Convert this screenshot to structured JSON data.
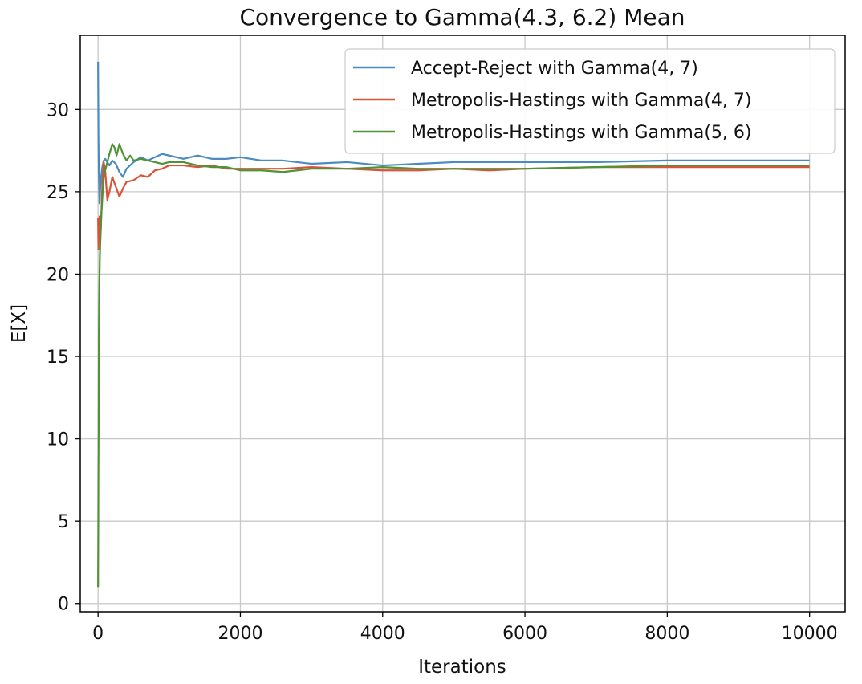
{
  "chart_data": {
    "type": "line",
    "title": "Convergence to Gamma(4.3, 6.2) Mean",
    "xlabel": "Iterations",
    "ylabel": "E[X]",
    "xlim": [
      -250,
      10500
    ],
    "ylim": [
      -0.5,
      34.5
    ],
    "xticks": [
      0,
      2000,
      4000,
      6000,
      8000,
      10000
    ],
    "yticks": [
      0,
      5,
      10,
      15,
      20,
      25,
      30
    ],
    "grid": true,
    "legend_position": "top-right",
    "series": [
      {
        "name": "Accept-Reject with Gamma(4, 7)",
        "color": "#4c8bbf",
        "x": [
          0,
          5,
          10,
          20,
          30,
          40,
          60,
          80,
          100,
          130,
          160,
          200,
          250,
          300,
          350,
          400,
          500,
          600,
          700,
          800,
          900,
          1000,
          1200,
          1400,
          1600,
          1800,
          2000,
          2300,
          2600,
          3000,
          3500,
          4000,
          4500,
          5000,
          6000,
          7000,
          8000,
          9000,
          10000
        ],
        "y": [
          32.9,
          28.5,
          26.4,
          24.3,
          25.2,
          25.8,
          26.5,
          26.9,
          27.0,
          26.8,
          26.6,
          26.9,
          26.7,
          26.2,
          25.9,
          26.4,
          26.8,
          27.1,
          26.9,
          27.1,
          27.3,
          27.2,
          27.0,
          27.2,
          27.0,
          27.0,
          27.1,
          26.9,
          26.9,
          26.7,
          26.8,
          26.6,
          26.7,
          26.8,
          26.8,
          26.8,
          26.9,
          26.9,
          26.9
        ]
      },
      {
        "name": "Metropolis-Hastings with Gamma(4, 7)",
        "color": "#d9533a",
        "x": [
          0,
          5,
          10,
          20,
          30,
          40,
          50,
          60,
          80,
          100,
          130,
          160,
          200,
          250,
          300,
          350,
          400,
          500,
          600,
          700,
          800,
          900,
          1000,
          1200,
          1400,
          1600,
          1800,
          2000,
          2300,
          2600,
          3000,
          3500,
          4000,
          4500,
          5000,
          5500,
          6000,
          7000,
          8000,
          9000,
          10000
        ],
        "y": [
          23.4,
          21.5,
          22.8,
          23.5,
          21.9,
          22.8,
          24.2,
          25.5,
          26.8,
          26.3,
          24.5,
          25.0,
          25.9,
          25.3,
          24.7,
          25.2,
          25.6,
          25.7,
          26.0,
          25.9,
          26.3,
          26.4,
          26.6,
          26.6,
          26.5,
          26.6,
          26.4,
          26.4,
          26.4,
          26.4,
          26.5,
          26.4,
          26.3,
          26.3,
          26.4,
          26.3,
          26.4,
          26.5,
          26.5,
          26.5,
          26.5
        ]
      },
      {
        "name": "Metropolis-Hastings with Gamma(5, 6)",
        "color": "#4e9335",
        "x": [
          0,
          3,
          5,
          8,
          12,
          18,
          25,
          35,
          45,
          60,
          80,
          100,
          130,
          160,
          200,
          230,
          260,
          300,
          350,
          400,
          450,
          500,
          600,
          700,
          800,
          900,
          1000,
          1200,
          1400,
          1600,
          1800,
          2000,
          2300,
          2600,
          3000,
          3500,
          4000,
          4500,
          5000,
          6000,
          7000,
          8000,
          9000,
          10000
        ],
        "y": [
          1.0,
          4.6,
          8.0,
          10.5,
          16.8,
          19.3,
          21.0,
          22.5,
          23.5,
          24.6,
          25.9,
          26.3,
          26.8,
          27.3,
          27.9,
          27.7,
          27.2,
          27.9,
          27.3,
          26.9,
          27.2,
          26.9,
          27.0,
          26.9,
          26.8,
          26.7,
          26.8,
          26.8,
          26.6,
          26.5,
          26.5,
          26.3,
          26.3,
          26.2,
          26.4,
          26.4,
          26.5,
          26.4,
          26.4,
          26.4,
          26.5,
          26.6,
          26.6,
          26.6
        ]
      }
    ]
  }
}
